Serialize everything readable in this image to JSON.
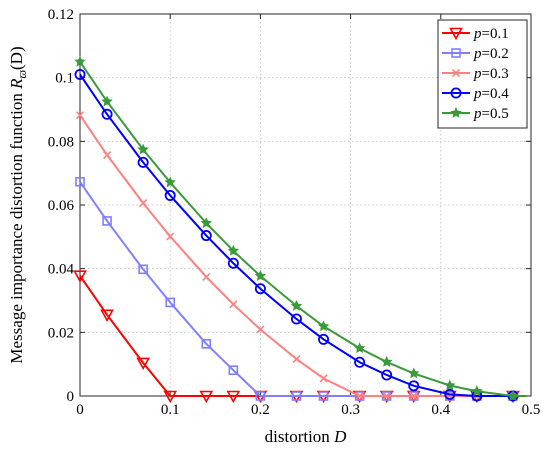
{
  "chart_data": {
    "type": "line",
    "xlabel": {
      "text": "distortion ",
      "var": "D"
    },
    "ylabel": {
      "text": "Message importance distortion function ",
      "var": "R",
      "sub": "ϖ",
      "arg": "(D)"
    },
    "xlim": [
      0,
      0.5
    ],
    "ylim": [
      0,
      0.12
    ],
    "xticks": [
      "0",
      "0.1",
      "0.2",
      "0.3",
      "0.4",
      "0.5"
    ],
    "yticks": [
      "0",
      "0.02",
      "0.04",
      "0.06",
      "0.08",
      "0.1",
      "0.12"
    ],
    "grid": true,
    "legend_position": "top-right",
    "series": [
      {
        "name": "p=0.1",
        "legend_var": "p",
        "legend_value": "=0.1",
        "color": "#ff0000",
        "marker": "triangle-down",
        "x": [
          0,
          0.03,
          0.07,
          0.1,
          0.14,
          0.17,
          0.2,
          0.24,
          0.27,
          0.31,
          0.34,
          0.37,
          0.41,
          0.44,
          0.48
        ],
        "y": [
          0.0378,
          0.0255,
          0.0104,
          0,
          0,
          0,
          0,
          0,
          0,
          0,
          0,
          0,
          0,
          0,
          0
        ]
      },
      {
        "name": "p=0.2",
        "legend_var": "p",
        "legend_value": "=0.2",
        "color": "#8080ff",
        "marker": "square",
        "x": [
          0,
          0.03,
          0.07,
          0.1,
          0.14,
          0.17,
          0.2,
          0.24,
          0.27,
          0.31,
          0.34,
          0.37,
          0.41,
          0.44,
          0.48
        ],
        "y": [
          0.0673,
          0.055,
          0.0398,
          0.0294,
          0.0164,
          0.0081,
          0,
          0,
          0,
          0,
          0,
          0,
          0,
          0,
          0
        ]
      },
      {
        "name": "p=0.3",
        "legend_var": "p",
        "legend_value": "=0.3",
        "color": "#ff8080",
        "marker": "x",
        "x": [
          0,
          0.03,
          0.07,
          0.1,
          0.14,
          0.17,
          0.2,
          0.24,
          0.27,
          0.31,
          0.34,
          0.37,
          0.41,
          0.44,
          0.48
        ],
        "y": [
          0.0882,
          0.0757,
          0.0606,
          0.0501,
          0.0374,
          0.0288,
          0.0209,
          0.0116,
          0.0055,
          0,
          0,
          0,
          0,
          0,
          0
        ]
      },
      {
        "name": "p=0.4",
        "legend_var": "p",
        "legend_value": "=0.4",
        "color": "#0000ff",
        "marker": "circle",
        "x": [
          0,
          0.03,
          0.07,
          0.1,
          0.14,
          0.17,
          0.2,
          0.24,
          0.27,
          0.31,
          0.34,
          0.37,
          0.41,
          0.44,
          0.48
        ],
        "y": [
          0.101,
          0.0885,
          0.0734,
          0.063,
          0.0504,
          0.0417,
          0.0337,
          0.0242,
          0.0178,
          0.0106,
          0.0066,
          0.0032,
          0.0005,
          0,
          0
        ]
      },
      {
        "name": "p=0.5",
        "legend_var": "p",
        "legend_value": "=0.5",
        "color": "#3a9a3a",
        "marker": "star",
        "x": [
          0,
          0.03,
          0.07,
          0.1,
          0.14,
          0.17,
          0.2,
          0.24,
          0.27,
          0.31,
          0.34,
          0.37,
          0.41,
          0.44,
          0.48
        ],
        "y": [
          0.105,
          0.0925,
          0.0774,
          0.0671,
          0.0543,
          0.0456,
          0.0377,
          0.0283,
          0.0219,
          0.015,
          0.0107,
          0.0071,
          0.0033,
          0.0015,
          0
        ]
      }
    ]
  }
}
